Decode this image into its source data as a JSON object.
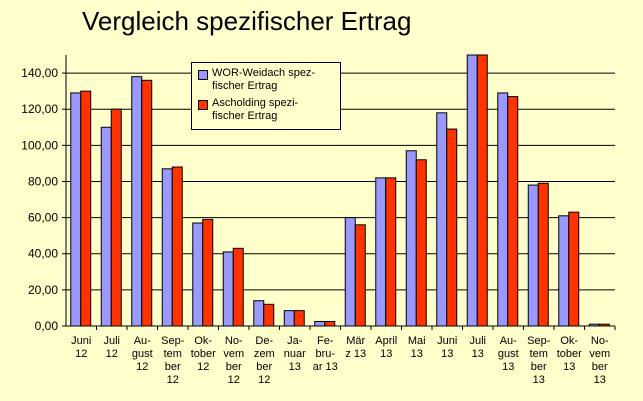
{
  "chart_data": {
    "type": "bar",
    "title": "Vergleich spezifischer Ertrag",
    "categories": [
      [
        "Juni",
        "12"
      ],
      [
        "Juli",
        "12"
      ],
      [
        "Au-",
        "gust",
        "12"
      ],
      [
        "Sep-",
        "tem",
        "ber",
        "12"
      ],
      [
        "Ok-",
        "tober",
        "12"
      ],
      [
        "No-",
        "vem",
        "ber",
        "12"
      ],
      [
        "De-",
        "zem",
        "ber",
        "12"
      ],
      [
        "Ja-",
        "nuar",
        "13"
      ],
      [
        "Fe-",
        "bru-",
        "ar 13"
      ],
      [
        "Mär",
        "z 13"
      ],
      [
        "April",
        "13"
      ],
      [
        "Mai",
        "13"
      ],
      [
        "Juni",
        "13"
      ],
      [
        "Juli",
        "13"
      ],
      [
        "Au-",
        "gust",
        "13"
      ],
      [
        "Sep-",
        "tem",
        "ber",
        "13"
      ],
      [
        "Ok-",
        "tober",
        "13"
      ],
      [
        "No-",
        "vem",
        "ber",
        "13"
      ]
    ],
    "series": [
      {
        "name": "WOR-Weidach spezifischer Ertrag",
        "legend_lines": [
          "WOR-Weidach spez-",
          "fischer Ertrag"
        ],
        "color": "#9999ff",
        "values": [
          129,
          110,
          138,
          87,
          57,
          41,
          14,
          8.5,
          2.5,
          60,
          82,
          97,
          118,
          150,
          129,
          78,
          61,
          1
        ]
      },
      {
        "name": "Ascholding spezifischer Ertrag",
        "legend_lines": [
          "Ascholding spezi-",
          "fischer Ertrag"
        ],
        "color": "#ff3300",
        "values": [
          130,
          120,
          136,
          88,
          59,
          43,
          12,
          8.5,
          2.5,
          56,
          82,
          92,
          109,
          150,
          127,
          79,
          63,
          1
        ]
      }
    ],
    "ylim": [
      0,
      150
    ],
    "yticks": [
      "0,00",
      "20,00",
      "40,00",
      "60,00",
      "80,00",
      "100,00",
      "120,00",
      "140,00"
    ],
    "grid": true,
    "legend_position": "top-left"
  }
}
